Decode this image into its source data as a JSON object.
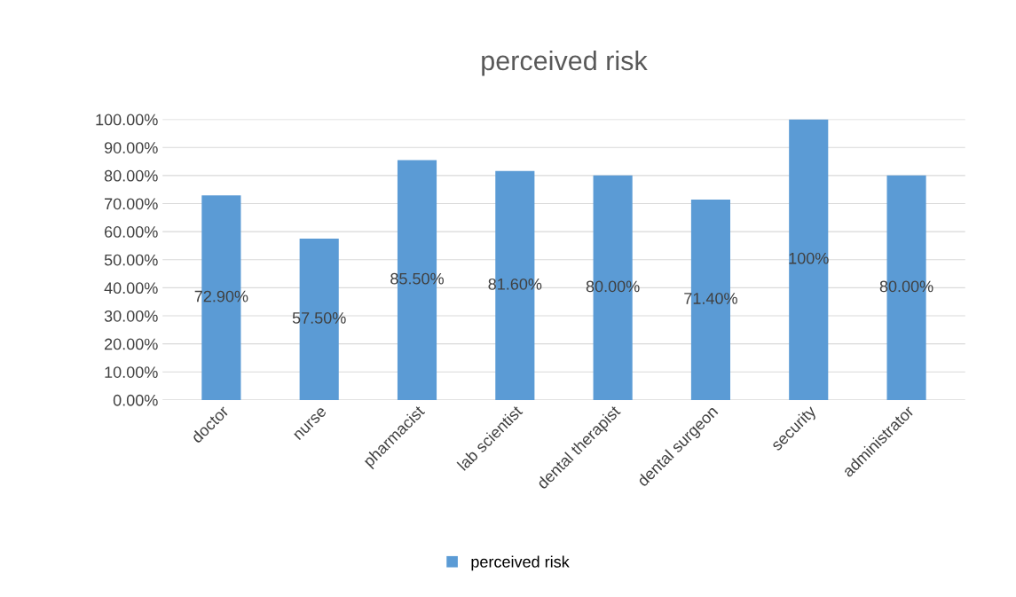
{
  "chart_data": {
    "type": "bar",
    "title": "perceived risk",
    "categories": [
      "doctor",
      "nurse",
      "pharmacist",
      "lab scientist",
      "dental therapist",
      "dental surgeon",
      "security",
      "administrator"
    ],
    "series": [
      {
        "name": "perceived risk",
        "color": "#5b9bd5",
        "values": [
          72.9,
          57.5,
          85.5,
          81.6,
          80.0,
          71.4,
          100,
          80.0
        ],
        "value_labels": [
          "72.90%",
          "57.50%",
          "85.50%",
          "81.60%",
          "80.00%",
          "71.40%",
          "100%",
          "80.00%"
        ]
      }
    ],
    "ylim": [
      0,
      100
    ],
    "yticks": [
      {
        "value": 0,
        "label": "0.00%"
      },
      {
        "value": 10,
        "label": "10.00%"
      },
      {
        "value": 20,
        "label": "20.00%"
      },
      {
        "value": 30,
        "label": "30.00%"
      },
      {
        "value": 40,
        "label": "40.00%"
      },
      {
        "value": 50,
        "label": "50.00%"
      },
      {
        "value": 60,
        "label": "60.00%"
      },
      {
        "value": 70,
        "label": "70.00%"
      },
      {
        "value": 80,
        "label": "80.00%"
      },
      {
        "value": 90,
        "label": "90.00%"
      },
      {
        "value": 100,
        "label": "100.00%"
      }
    ],
    "grid": "y",
    "legend": "bottom"
  }
}
